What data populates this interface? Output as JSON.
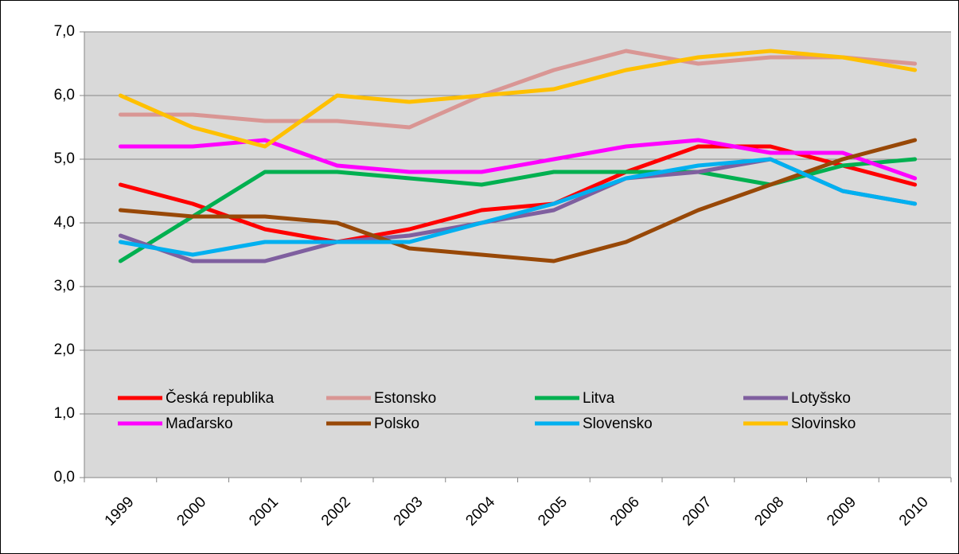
{
  "chart_data": {
    "type": "line",
    "categories": [
      "1999",
      "2000",
      "2001",
      "2002",
      "2003",
      "2004",
      "2005",
      "2006",
      "2007",
      "2008",
      "2009",
      "2010"
    ],
    "series": [
      {
        "name": "Česká republika",
        "color": "#ff0000",
        "values": [
          4.6,
          4.3,
          3.9,
          3.7,
          3.9,
          4.2,
          4.3,
          4.8,
          5.2,
          5.2,
          4.9,
          4.6
        ]
      },
      {
        "name": "Estonsko",
        "color": "#d99694",
        "values": [
          5.7,
          5.7,
          5.6,
          5.6,
          5.5,
          6.0,
          6.4,
          6.7,
          6.5,
          6.6,
          6.6,
          6.5
        ]
      },
      {
        "name": "Litva",
        "color": "#00b050",
        "values": [
          3.4,
          4.1,
          4.8,
          4.8,
          4.7,
          4.6,
          4.8,
          4.8,
          4.8,
          4.6,
          4.9,
          5.0
        ]
      },
      {
        "name": "Lotyšsko",
        "color": "#7f5f9f",
        "values": [
          3.8,
          3.4,
          3.4,
          3.7,
          3.8,
          4.0,
          4.2,
          4.7,
          4.8,
          5.0,
          4.5,
          4.3
        ]
      },
      {
        "name": "Maďarsko",
        "color": "#ff00ff",
        "values": [
          5.2,
          5.2,
          5.3,
          4.9,
          4.8,
          4.8,
          5.0,
          5.2,
          5.3,
          5.1,
          5.1,
          4.7
        ]
      },
      {
        "name": "Polsko",
        "color": "#984807",
        "values": [
          4.2,
          4.1,
          4.1,
          4.0,
          3.6,
          3.5,
          3.4,
          3.7,
          4.2,
          4.6,
          5.0,
          5.3
        ]
      },
      {
        "name": "Slovensko",
        "color": "#00b0f0",
        "values": [
          3.7,
          3.5,
          3.7,
          3.7,
          3.7,
          4.0,
          4.3,
          4.7,
          4.9,
          5.0,
          4.5,
          4.3
        ]
      },
      {
        "name": "Slovinsko",
        "color": "#ffc000",
        "values": [
          6.0,
          5.5,
          5.2,
          6.0,
          5.9,
          6.0,
          6.1,
          6.4,
          6.6,
          6.7,
          6.6,
          6.4
        ]
      }
    ],
    "ylim": [
      0,
      7
    ],
    "yticks": [
      {
        "value": 0,
        "label": "0,0"
      },
      {
        "value": 1,
        "label": "1,0"
      },
      {
        "value": 2,
        "label": "2,0"
      },
      {
        "value": 3,
        "label": "3,0"
      },
      {
        "value": 4,
        "label": "4,0"
      },
      {
        "value": 5,
        "label": "5,0"
      },
      {
        "value": 6,
        "label": "6,0"
      },
      {
        "value": 7,
        "label": "7,0"
      }
    ],
    "grid": true,
    "legend": "bottom",
    "plot_background": "#d9d9d9"
  }
}
